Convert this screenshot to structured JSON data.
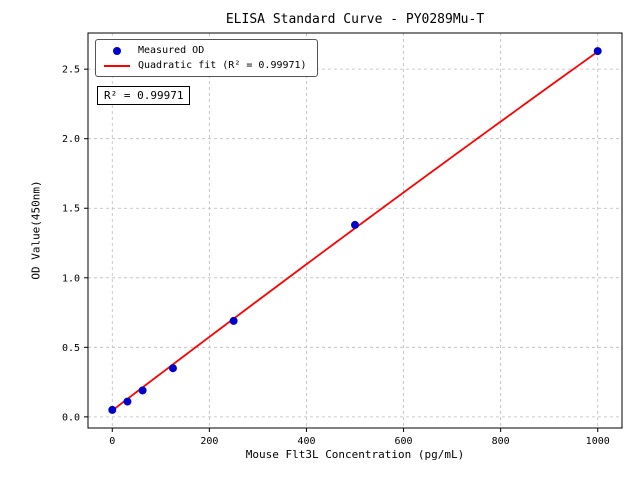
{
  "chart_data": {
    "type": "scatter",
    "title": "ELISA Standard Curve - PY0289Mu-T",
    "xlabel": "Mouse Flt3L Concentration (pg/mL)",
    "ylabel": "OD Value(450nm)",
    "xlim": [
      -50,
      1050
    ],
    "ylim": [
      -0.08,
      2.76
    ],
    "xticks": [
      "0",
      "200",
      "400",
      "600",
      "800",
      "1000"
    ],
    "yticks": [
      "0.0",
      "0.5",
      "1.0",
      "1.5",
      "2.0",
      "2.5"
    ],
    "grid": true,
    "grid_style": "dashed",
    "grid_color": "#bbbbbb",
    "legend_position": "upper-left",
    "annotation": "R² = 0.99971",
    "fit_range": [
      0,
      1000
    ],
    "series": [
      {
        "name": "Measured OD",
        "type": "scatter",
        "color": "#0000cd",
        "x": [
          0,
          31.25,
          62.5,
          125,
          250,
          500,
          1000
        ],
        "y": [
          0.05,
          0.11,
          0.19,
          0.35,
          0.69,
          1.38,
          2.63
        ]
      },
      {
        "name": "Quadratic fit (R² = 0.99971)",
        "type": "line",
        "color": "#ff0000",
        "fit": {
          "a": 0.046,
          "b": 0.00266,
          "c": -8e-08
        }
      }
    ]
  }
}
